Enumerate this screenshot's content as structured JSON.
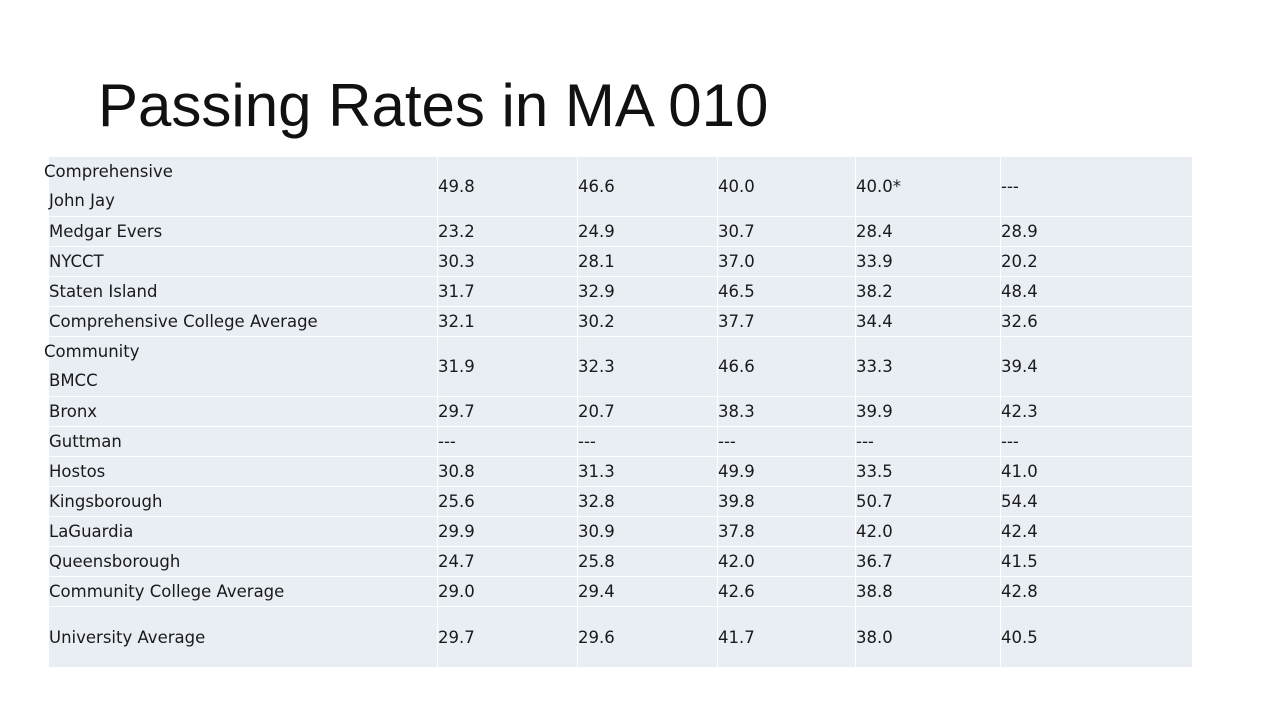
{
  "slide": {
    "title": "Passing Rates in MA 010"
  },
  "table": {
    "rows": [
      {
        "group": "Comprehensive",
        "name": "John Jay",
        "values": [
          "49.8",
          "46.6",
          "40.0",
          "40.0*",
          "---"
        ]
      },
      {
        "name": "Medgar Evers",
        "values": [
          "23.2",
          "24.9",
          "30.7",
          "28.4",
          "28.9"
        ]
      },
      {
        "name": "NYCCT",
        "values": [
          "30.3",
          "28.1",
          "37.0",
          "33.9",
          "20.2"
        ]
      },
      {
        "name": "Staten Island",
        "values": [
          "31.7",
          "32.9",
          "46.5",
          "38.2",
          "48.4"
        ]
      },
      {
        "name": "Comprehensive College Average",
        "values": [
          "32.1",
          "30.2",
          "37.7",
          "34.4",
          "32.6"
        ]
      },
      {
        "group": "Community",
        "name": "BMCC",
        "values": [
          "31.9",
          "32.3",
          "46.6",
          "33.3",
          "39.4"
        ]
      },
      {
        "name": "Bronx",
        "values": [
          "29.7",
          "20.7",
          "38.3",
          "39.9",
          "42.3"
        ]
      },
      {
        "name": "Guttman",
        "values": [
          "---",
          "---",
          "---",
          "---",
          "---"
        ]
      },
      {
        "name": "Hostos",
        "values": [
          "30.8",
          "31.3",
          "49.9",
          "33.5",
          "41.0"
        ]
      },
      {
        "name": "Kingsborough",
        "values": [
          "25.6",
          "32.8",
          "39.8",
          "50.7",
          "54.4"
        ]
      },
      {
        "name": "LaGuardia",
        "values": [
          "29.9",
          "30.9",
          "37.8",
          "42.0",
          "42.4"
        ]
      },
      {
        "name": "Queensborough",
        "values": [
          "24.7",
          "25.8",
          "42.0",
          "36.7",
          "41.5"
        ]
      },
      {
        "name": "Community College Average",
        "values": [
          "29.0",
          "29.4",
          "42.6",
          "38.8",
          "42.8"
        ]
      },
      {
        "name": "University Average",
        "values": [
          "29.7",
          "29.6",
          "41.7",
          "38.0",
          "40.5"
        ]
      }
    ]
  }
}
